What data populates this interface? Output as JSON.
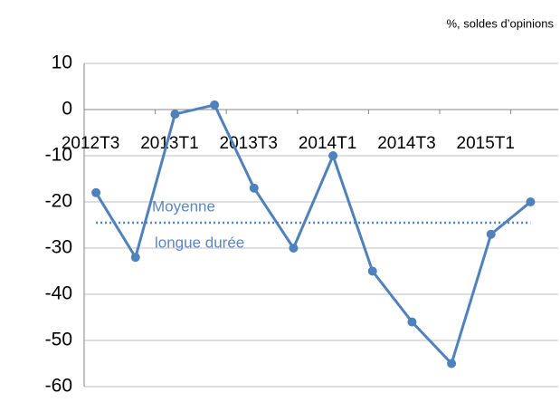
{
  "chart_data": {
    "type": "line",
    "subtitle": "%, soldes d’opinions",
    "categories": [
      "2012T3",
      null,
      "2013T1",
      null,
      "2013T3",
      null,
      "2014T1",
      null,
      "2014T3",
      null,
      "2015T1",
      null
    ],
    "series": [
      {
        "name": null,
        "color": "#4f81bd",
        "values": [
          -18,
          -32,
          -1,
          1,
          -17,
          -30,
          -10,
          -35,
          -46,
          -55,
          -27,
          -20
        ]
      }
    ],
    "average_line": {
      "value": -24.5,
      "color": "#4f81bd",
      "label": [
        "Moyenne",
        "longue durée"
      ]
    },
    "ylim": [
      -60,
      10
    ],
    "yticks": [
      -60,
      -50,
      -40,
      -30,
      -20,
      -10,
      0,
      10
    ],
    "grid": true
  }
}
